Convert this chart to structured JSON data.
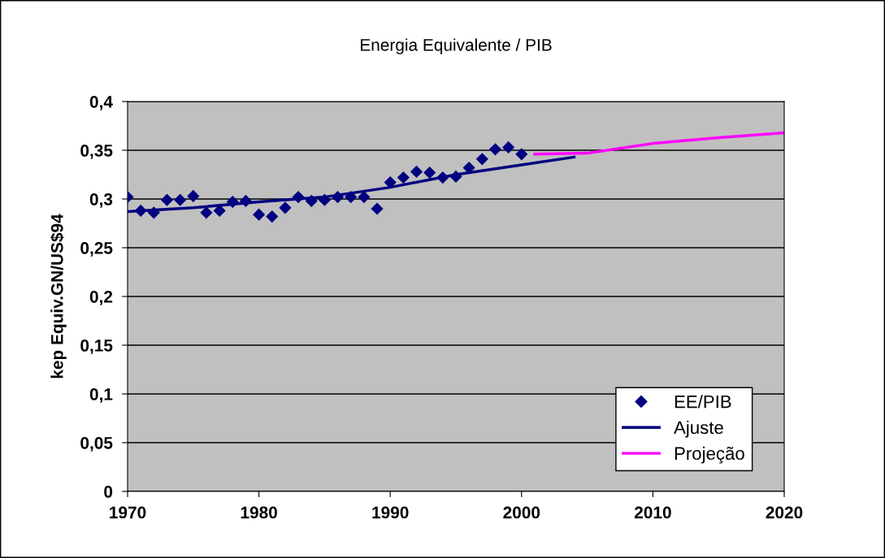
{
  "chart_data": {
    "type": "scatter",
    "title": "Energia Equivalente / PIB",
    "ylabel": "kep Equiv.GN/US$94",
    "xlim": [
      1970,
      2020
    ],
    "xticks": [
      1970,
      1980,
      1990,
      2000,
      2010,
      2020
    ],
    "ylim": [
      0,
      0.4
    ],
    "yticks": [
      {
        "value": 0,
        "label": "0"
      },
      {
        "value": 0.05,
        "label": "0,05"
      },
      {
        "value": 0.1,
        "label": "0,1"
      },
      {
        "value": 0.15,
        "label": "0,15"
      },
      {
        "value": 0.2,
        "label": "0,2"
      },
      {
        "value": 0.25,
        "label": "0,25"
      },
      {
        "value": 0.3,
        "label": "0,3"
      },
      {
        "value": 0.35,
        "label": "0,35"
      },
      {
        "value": 0.4,
        "label": "0,4"
      }
    ],
    "grid": "y",
    "legend": "bottom right",
    "series": [
      {
        "name": "EE/PIB",
        "marker": "diamond",
        "color": "#000080",
        "x": [
          1970,
          1971,
          1972,
          1973,
          1974,
          1975,
          1976,
          1977,
          1978,
          1979,
          1980,
          1981,
          1982,
          1983,
          1984,
          1985,
          1986,
          1987,
          1988,
          1989,
          1990,
          1991,
          1992,
          1993,
          1994,
          1995,
          1996,
          1997,
          1998,
          1999,
          2000
        ],
        "values": [
          0.302,
          0.288,
          0.286,
          0.299,
          0.299,
          0.303,
          0.286,
          0.288,
          0.297,
          0.298,
          0.284,
          0.282,
          0.291,
          0.302,
          0.298,
          0.299,
          0.302,
          0.302,
          0.302,
          0.29,
          0.317,
          0.322,
          0.328,
          0.327,
          0.322,
          0.323,
          0.332,
          0.341,
          0.351,
          0.353,
          0.346
        ]
      },
      {
        "name": "Ajuste",
        "type": "line",
        "color": "#000080",
        "x": [
          1970,
          1975,
          1980,
          1985,
          1990,
          1995,
          2000,
          2004
        ],
        "values": [
          0.287,
          0.291,
          0.297,
          0.302,
          0.312,
          0.325,
          0.335,
          0.343
        ]
      },
      {
        "name": "Projeção",
        "type": "line",
        "color": "#ff00ff",
        "x": [
          2001,
          2005,
          2010,
          2015,
          2020
        ],
        "values": [
          0.346,
          0.347,
          0.357,
          0.363,
          0.368
        ]
      }
    ]
  }
}
